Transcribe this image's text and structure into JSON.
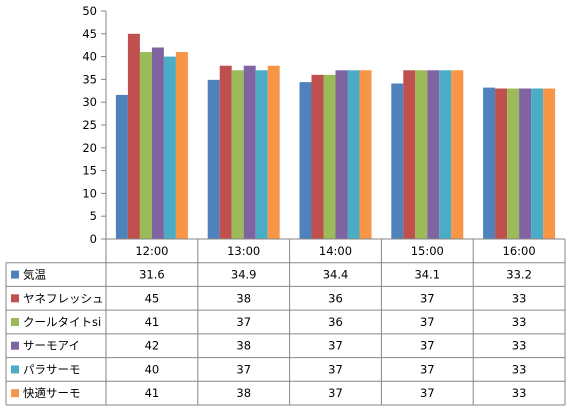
{
  "chart_data": {
    "type": "bar",
    "categories": [
      "12:00",
      "13:00",
      "14:00",
      "15:00",
      "16:00"
    ],
    "series": [
      {
        "name": "気温",
        "values": [
          31.6,
          34.9,
          34.4,
          34.1,
          33.2
        ],
        "labels": [
          "31.6",
          "34.9",
          "34.4",
          "34.1",
          "33.2"
        ],
        "color": "#4F81BD"
      },
      {
        "name": "ヤネフレッシュ",
        "values": [
          45,
          38,
          36,
          37,
          33
        ],
        "labels": [
          "45",
          "38",
          "36",
          "37",
          "33"
        ],
        "color": "#C0504D"
      },
      {
        "name": "クールタイトsi",
        "values": [
          41,
          37,
          36,
          37,
          33
        ],
        "labels": [
          "41",
          "37",
          "36",
          "37",
          "33"
        ],
        "color": "#9BBB59"
      },
      {
        "name": "サーモアイ",
        "values": [
          42,
          38,
          37,
          37,
          33
        ],
        "labels": [
          "42",
          "38",
          "37",
          "37",
          "33"
        ],
        "color": "#8064A2"
      },
      {
        "name": "パラサーモ",
        "values": [
          40,
          37,
          37,
          37,
          33
        ],
        "labels": [
          "40",
          "37",
          "37",
          "37",
          "33"
        ],
        "color": "#4BACC6"
      },
      {
        "name": "快適サーモ",
        "values": [
          41,
          38,
          37,
          37,
          33
        ],
        "labels": [
          "41",
          "38",
          "37",
          "37",
          "33"
        ],
        "color": "#F79646"
      }
    ],
    "ylim": [
      0,
      50
    ],
    "yticks": [
      "0",
      "5",
      "10",
      "15",
      "20",
      "25",
      "30",
      "35",
      "40",
      "45",
      "50"
    ],
    "grid": false,
    "legend": "data-table"
  }
}
